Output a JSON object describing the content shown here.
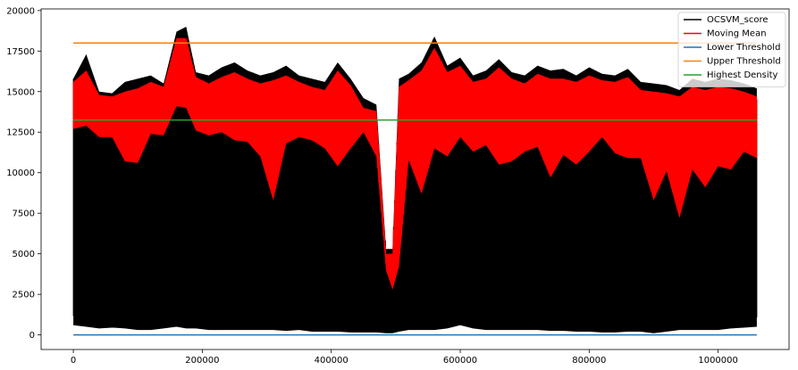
{
  "chart_data": {
    "type": "line",
    "title": "",
    "xlabel": "",
    "ylabel": "",
    "xlim": [
      -50000,
      1110000
    ],
    "ylim": [
      -900,
      20100
    ],
    "x_ticks": [
      0,
      200000,
      400000,
      600000,
      800000,
      1000000
    ],
    "x_tick_labels": [
      "0",
      "200000",
      "400000",
      "600000",
      "800000",
      "1000000"
    ],
    "y_ticks": [
      0,
      2500,
      5000,
      7500,
      10000,
      12500,
      15000,
      17500,
      20000
    ],
    "y_tick_labels": [
      "0",
      "2500",
      "5000",
      "7500",
      "10000",
      "12500",
      "15000",
      "17500",
      "20000"
    ],
    "legend_position": "top-right",
    "series": [
      {
        "name": "OCSVM_score",
        "color": "#000000",
        "kind": "band",
        "x": [
          0,
          20000,
          40000,
          60000,
          80000,
          100000,
          120000,
          140000,
          160000,
          175000,
          190000,
          210000,
          230000,
          250000,
          270000,
          290000,
          310000,
          330000,
          350000,
          370000,
          390000,
          410000,
          430000,
          450000,
          470000,
          485000,
          495000,
          505000,
          520000,
          540000,
          560000,
          580000,
          600000,
          620000,
          640000,
          660000,
          680000,
          700000,
          720000,
          740000,
          760000,
          780000,
          800000,
          820000,
          840000,
          860000,
          880000,
          900000,
          920000,
          940000,
          960000,
          980000,
          1000000,
          1020000,
          1040000,
          1060000
        ],
        "upper": [
          15800,
          17300,
          15000,
          14900,
          15600,
          15800,
          16000,
          15500,
          18700,
          19000,
          16200,
          16000,
          16500,
          16800,
          16300,
          16000,
          16200,
          16600,
          16000,
          15800,
          15600,
          16800,
          15800,
          14600,
          14200,
          5300,
          5300,
          15800,
          16100,
          16800,
          18400,
          16600,
          17100,
          16000,
          16300,
          17000,
          16200,
          16000,
          16600,
          16300,
          16400,
          16000,
          16500,
          16100,
          16000,
          16400,
          15600,
          15500,
          15400,
          15100,
          15800,
          15600,
          15800,
          15700,
          15500,
          15200
        ],
        "lower": [
          600,
          500,
          400,
          450,
          400,
          300,
          300,
          400,
          500,
          400,
          400,
          300,
          300,
          300,
          300,
          300,
          300,
          250,
          300,
          200,
          200,
          200,
          150,
          150,
          150,
          100,
          100,
          200,
          300,
          300,
          300,
          400,
          600,
          400,
          300,
          300,
          300,
          300,
          300,
          250,
          250,
          200,
          200,
          150,
          150,
          200,
          200,
          100,
          200,
          300,
          300,
          300,
          300,
          400,
          450,
          500
        ]
      },
      {
        "name": "Moving Mean",
        "color": "#ff0000",
        "kind": "band",
        "x": [
          0,
          20000,
          40000,
          60000,
          80000,
          100000,
          120000,
          140000,
          160000,
          175000,
          190000,
          210000,
          230000,
          250000,
          270000,
          290000,
          310000,
          330000,
          350000,
          370000,
          390000,
          410000,
          430000,
          450000,
          470000,
          485000,
          495000,
          505000,
          520000,
          540000,
          560000,
          580000,
          600000,
          620000,
          640000,
          660000,
          680000,
          700000,
          720000,
          740000,
          760000,
          780000,
          800000,
          820000,
          840000,
          860000,
          880000,
          900000,
          920000,
          940000,
          960000,
          980000,
          1000000,
          1020000,
          1040000,
          1060000
        ],
        "upper": [
          15600,
          16300,
          14800,
          14700,
          15000,
          15200,
          15600,
          15300,
          18300,
          18300,
          15900,
          15500,
          15900,
          16200,
          15800,
          15500,
          15700,
          16000,
          15600,
          15300,
          15100,
          16300,
          15400,
          14000,
          13800,
          5000,
          5000,
          15300,
          15700,
          16300,
          17700,
          16200,
          16600,
          15600,
          15800,
          16500,
          15800,
          15500,
          16100,
          15800,
          15800,
          15600,
          16000,
          15700,
          15600,
          15900,
          15100,
          15000,
          14900,
          14700,
          15300,
          15100,
          15300,
          15200,
          15000,
          14700
        ],
        "lower": [
          12700,
          12900,
          12200,
          12200,
          10700,
          10600,
          12400,
          12300,
          14100,
          14000,
          12600,
          12300,
          12500,
          12000,
          11900,
          11000,
          8300,
          11800,
          12200,
          12000,
          11500,
          10400,
          11500,
          12500,
          11000,
          4000,
          2800,
          4200,
          10800,
          8700,
          11500,
          11000,
          12200,
          11300,
          11700,
          10500,
          10700,
          11300,
          11600,
          9700,
          11100,
          10500,
          11300,
          12200,
          11200,
          10900,
          10900,
          8300,
          10100,
          7200,
          10200,
          9100,
          10400,
          10200,
          11300,
          10900
        ]
      },
      {
        "name": "Lower Threshold",
        "color": "#1f77b4",
        "kind": "line",
        "x": [
          0,
          1060000
        ],
        "y": [
          0,
          0
        ]
      },
      {
        "name": "Upper Threshold",
        "color": "#ff7f0e",
        "kind": "line",
        "x": [
          0,
          1060000
        ],
        "y": [
          18000,
          18000
        ]
      },
      {
        "name": "Highest Density",
        "color": "#2ca02c",
        "kind": "line",
        "x": [
          0,
          1060000
        ],
        "y": [
          13250,
          13250
        ]
      }
    ]
  }
}
